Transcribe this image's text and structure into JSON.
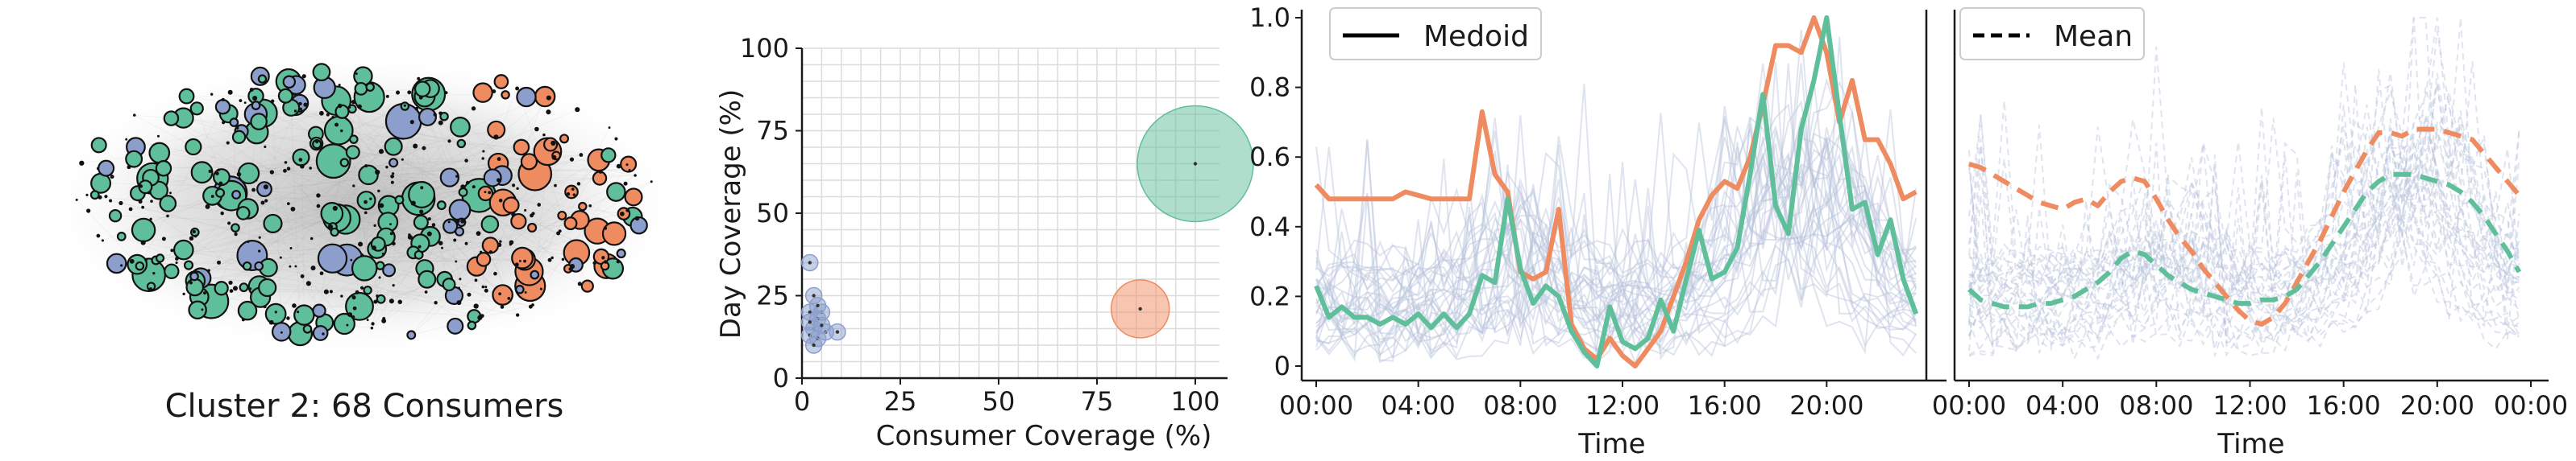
{
  "colors": {
    "cluster_blue": "#8c9fcc",
    "cluster_green": "#5fbf9a",
    "cluster_orange": "#ef8b61",
    "background_lines": "#b9c4dc",
    "axis": "#1a1a1a",
    "grid": "#dcdcdc"
  },
  "chart_data": [
    {
      "type": "network",
      "title": "Cluster 2: 68 Consumers",
      "node_groups": [
        "blue",
        "green",
        "orange"
      ]
    },
    {
      "type": "scatter",
      "xlabel": "Consumer Coverage (%)",
      "ylabel": "Day Coverage (%)",
      "xlim": [
        0,
        100
      ],
      "ylim": [
        0,
        100
      ],
      "xticks": [
        "0",
        "25",
        "50",
        "75",
        "100"
      ],
      "yticks": [
        "0",
        "25",
        "50",
        "75",
        "100"
      ],
      "grid": true,
      "points": [
        {
          "x": 100,
          "y": 65,
          "size": "large",
          "color": "green"
        },
        {
          "x": 86,
          "y": 21,
          "size": "medium",
          "color": "orange"
        },
        {
          "x": 2,
          "y": 35,
          "size": "small",
          "color": "blue"
        },
        {
          "x": 3,
          "y": 25,
          "size": "small",
          "color": "blue"
        },
        {
          "x": 5,
          "y": 20,
          "size": "small",
          "color": "blue"
        },
        {
          "x": 2,
          "y": 20,
          "size": "small",
          "color": "blue"
        },
        {
          "x": 4,
          "y": 18,
          "size": "small",
          "color": "blue"
        },
        {
          "x": 3,
          "y": 15,
          "size": "small",
          "color": "blue"
        },
        {
          "x": 2,
          "y": 13,
          "size": "small",
          "color": "blue"
        },
        {
          "x": 4,
          "y": 12,
          "size": "small",
          "color": "blue"
        },
        {
          "x": 3,
          "y": 10,
          "size": "small",
          "color": "blue"
        },
        {
          "x": 6,
          "y": 14,
          "size": "small",
          "color": "blue"
        },
        {
          "x": 9,
          "y": 14,
          "size": "small",
          "color": "blue"
        },
        {
          "x": 5,
          "y": 16,
          "size": "small",
          "color": "blue"
        },
        {
          "x": 2,
          "y": 17,
          "size": "small",
          "color": "blue"
        },
        {
          "x": 4,
          "y": 22,
          "size": "small",
          "color": "blue"
        }
      ]
    },
    {
      "type": "line",
      "xlabel": "Time",
      "ylabel": "",
      "xticks": [
        "00:00",
        "04:00",
        "08:00",
        "12:00",
        "16:00",
        "20:00"
      ],
      "yticks": [
        "0",
        "0.2",
        "0.4",
        "0.6",
        "0.8",
        "1.0"
      ],
      "ylim": [
        0,
        1.0
      ],
      "legend": {
        "label": "Medoid",
        "placement": "top-left"
      },
      "x_hours": [
        0,
        0.5,
        1,
        1.5,
        2,
        2.5,
        3,
        3.5,
        4,
        4.5,
        5,
        5.5,
        6,
        6.5,
        7,
        7.5,
        8,
        8.5,
        9,
        9.5,
        10,
        10.5,
        11,
        11.5,
        12,
        12.5,
        13,
        13.5,
        14,
        14.5,
        15,
        15.5,
        16,
        16.5,
        17,
        17.5,
        18,
        18.5,
        19,
        19.5,
        20,
        20.5,
        21,
        21.5,
        22,
        22.5,
        23,
        23.5
      ],
      "series": [
        {
          "color": "orange",
          "values": [
            0.52,
            0.48,
            0.48,
            0.48,
            0.48,
            0.48,
            0.48,
            0.5,
            0.49,
            0.48,
            0.48,
            0.48,
            0.48,
            0.73,
            0.55,
            0.5,
            0.27,
            0.25,
            0.27,
            0.45,
            0.12,
            0.05,
            0.02,
            0.08,
            0.03,
            0.0,
            0.05,
            0.1,
            0.2,
            0.3,
            0.42,
            0.49,
            0.53,
            0.51,
            0.6,
            0.75,
            0.92,
            0.92,
            0.9,
            1.0,
            0.9,
            0.7,
            0.82,
            0.65,
            0.65,
            0.58,
            0.48,
            0.5
          ]
        },
        {
          "color": "green",
          "values": [
            0.23,
            0.14,
            0.17,
            0.14,
            0.14,
            0.12,
            0.14,
            0.12,
            0.15,
            0.11,
            0.15,
            0.11,
            0.15,
            0.26,
            0.24,
            0.48,
            0.28,
            0.18,
            0.23,
            0.2,
            0.1,
            0.04,
            0.0,
            0.17,
            0.07,
            0.05,
            0.08,
            0.19,
            0.1,
            0.25,
            0.39,
            0.25,
            0.27,
            0.34,
            0.55,
            0.78,
            0.46,
            0.38,
            0.68,
            0.82,
            1.0,
            0.72,
            0.45,
            0.47,
            0.32,
            0.42,
            0.25,
            0.15
          ]
        }
      ]
    },
    {
      "type": "line",
      "xlabel": "Time",
      "ylabel": "",
      "xticks": [
        "00:00",
        "04:00",
        "08:00",
        "12:00",
        "16:00",
        "20:00",
        "00:00"
      ],
      "ylim": [
        0,
        1.0
      ],
      "legend": {
        "label": "Mean",
        "placement": "top-left"
      },
      "x_hours": [
        0,
        0.5,
        1,
        1.5,
        2,
        2.5,
        3,
        3.5,
        4,
        4.5,
        5,
        5.5,
        6,
        6.5,
        7,
        7.5,
        8,
        8.5,
        9,
        9.5,
        10,
        10.5,
        11,
        11.5,
        12,
        12.5,
        13,
        13.5,
        14,
        14.5,
        15,
        15.5,
        16,
        16.5,
        17,
        17.5,
        18,
        18.5,
        19,
        19.5,
        20,
        20.5,
        21,
        21.5,
        22,
        22.5,
        23,
        23.5
      ],
      "series": [
        {
          "color": "orange",
          "values": [
            0.58,
            0.57,
            0.55,
            0.53,
            0.51,
            0.49,
            0.47,
            0.46,
            0.45,
            0.47,
            0.48,
            0.46,
            0.5,
            0.53,
            0.54,
            0.53,
            0.48,
            0.42,
            0.37,
            0.33,
            0.28,
            0.24,
            0.2,
            0.16,
            0.13,
            0.12,
            0.14,
            0.18,
            0.24,
            0.3,
            0.36,
            0.43,
            0.5,
            0.56,
            0.62,
            0.67,
            0.67,
            0.66,
            0.68,
            0.68,
            0.68,
            0.67,
            0.66,
            0.65,
            0.61,
            0.57,
            0.53,
            0.49
          ]
        },
        {
          "color": "green",
          "values": [
            0.22,
            0.19,
            0.18,
            0.17,
            0.17,
            0.17,
            0.18,
            0.18,
            0.19,
            0.2,
            0.22,
            0.24,
            0.27,
            0.31,
            0.33,
            0.32,
            0.29,
            0.26,
            0.24,
            0.22,
            0.21,
            0.2,
            0.19,
            0.18,
            0.18,
            0.19,
            0.19,
            0.2,
            0.22,
            0.26,
            0.3,
            0.35,
            0.4,
            0.45,
            0.5,
            0.53,
            0.55,
            0.55,
            0.55,
            0.54,
            0.53,
            0.52,
            0.5,
            0.47,
            0.43,
            0.38,
            0.33,
            0.27
          ]
        }
      ]
    }
  ]
}
